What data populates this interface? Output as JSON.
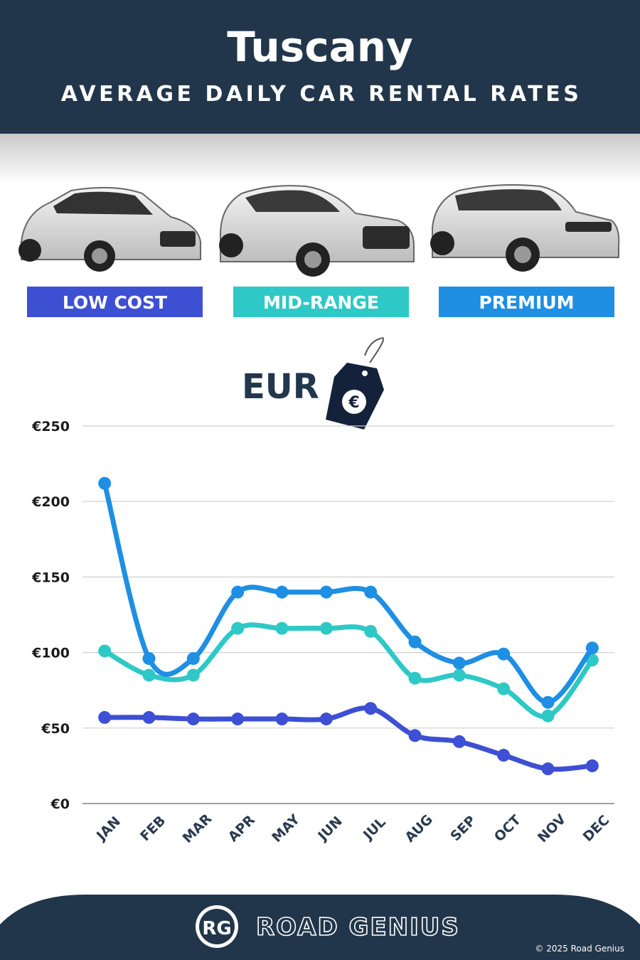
{
  "chart_data": {
    "type": "line",
    "title": "Tuscany",
    "subtitle": "AVERAGE DAILY CAR RENTAL RATES",
    "currency_label": "EUR",
    "categories": [
      "JAN",
      "FEB",
      "MAR",
      "APR",
      "MAY",
      "JUN",
      "JUL",
      "AUG",
      "SEP",
      "OCT",
      "NOV",
      "DEC"
    ],
    "series": [
      {
        "name": "LOW COST",
        "color": "#3d4fd3",
        "values": [
          57,
          57,
          56,
          56,
          56,
          56,
          63,
          45,
          41,
          32,
          23,
          25
        ]
      },
      {
        "name": "MID-RANGE",
        "color": "#2ec9c6",
        "values": [
          101,
          85,
          85,
          116,
          116,
          116,
          114,
          83,
          85,
          76,
          58,
          95
        ]
      },
      {
        "name": "PREMIUM",
        "color": "#1e8fe3",
        "values": [
          212,
          96,
          96,
          140,
          140,
          140,
          140,
          107,
          93,
          99,
          67,
          103
        ]
      }
    ],
    "ylim": [
      0,
      250
    ],
    "yticks": [
      {
        "value": 0,
        "label": "€0"
      },
      {
        "value": 50,
        "label": "€50"
      },
      {
        "value": 100,
        "label": "€100"
      },
      {
        "value": 150,
        "label": "€150"
      },
      {
        "value": 200,
        "label": "€200"
      },
      {
        "value": 250,
        "label": "€250"
      }
    ],
    "grid": true,
    "brand_initials": "RG",
    "brand_name": "ROAD GENIUS",
    "copyright": "© 2025 Road Genius"
  }
}
